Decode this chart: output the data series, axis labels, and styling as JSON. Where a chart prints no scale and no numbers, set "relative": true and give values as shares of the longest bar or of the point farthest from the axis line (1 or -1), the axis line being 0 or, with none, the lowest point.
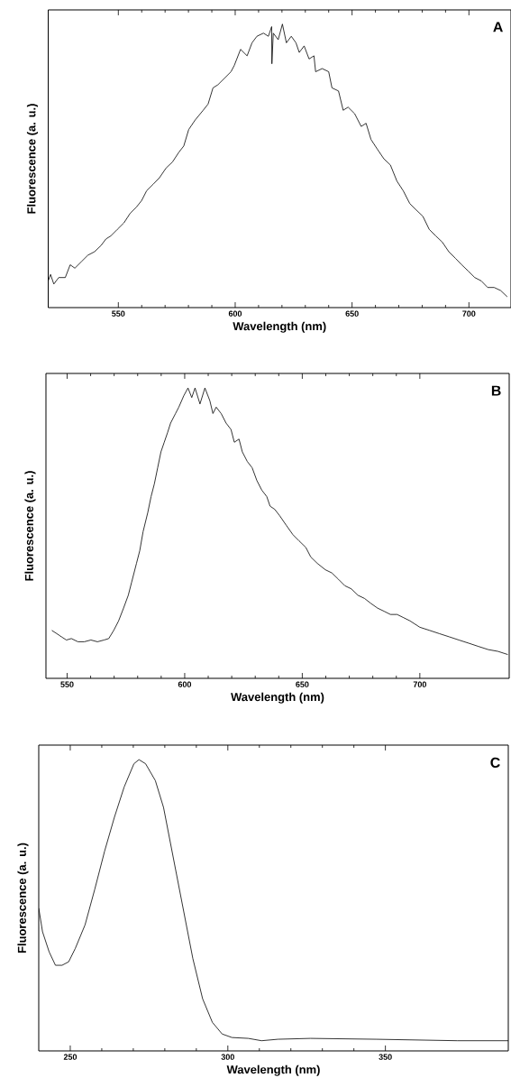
{
  "chart_data": [
    {
      "type": "line",
      "xlabel": "Wavelength (nm)",
      "ylabel": "Fluorescence (a. u.)",
      "relative": true,
      "color": "#000000",
      "xlim": [
        520,
        718
      ],
      "xticks": [
        550,
        600,
        650,
        700
      ],
      "annotations": [
        "A"
      ],
      "x": [
        520,
        521,
        522.4,
        524.5,
        527.3,
        529.4,
        531.4,
        534.2,
        537,
        539.8,
        542.6,
        544.7,
        546.8,
        549.6,
        552.4,
        555.1,
        557.9,
        560,
        562.1,
        564.9,
        567.6,
        570.4,
        573.2,
        575.9,
        578,
        580.1,
        582.9,
        586.3,
        588.4,
        590.5,
        592.6,
        595.4,
        598.2,
        599.6,
        602.3,
        605.1,
        607.2,
        609.3,
        612.1,
        614.2,
        615.6,
        615.7,
        616.3,
        618.4,
        620.2,
        621.9,
        624,
        626,
        627.4,
        629.5,
        631.6,
        633.7,
        634.4,
        637.2,
        640,
        641.4,
        644.2,
        646.2,
        648.3,
        651.1,
        653.9,
        656,
        658.1,
        660.8,
        663.6,
        666.4,
        669.2,
        671.9,
        674.7,
        677.5,
        680.3,
        683,
        685.8,
        688.6,
        691.4,
        694.2,
        696.9,
        699.7,
        702.5,
        705.3,
        708,
        710.8,
        713.6,
        716.4
      ],
      "values": [
        0.094,
        0.117,
        0.083,
        0.106,
        0.106,
        0.151,
        0.139,
        0.162,
        0.185,
        0.197,
        0.219,
        0.242,
        0.253,
        0.276,
        0.299,
        0.333,
        0.356,
        0.378,
        0.412,
        0.435,
        0.458,
        0.492,
        0.514,
        0.548,
        0.57,
        0.628,
        0.662,
        0.696,
        0.718,
        0.775,
        0.786,
        0.809,
        0.832,
        0.854,
        0.911,
        0.888,
        0.934,
        0.957,
        0.968,
        0.957,
        0.991,
        0.86,
        0.968,
        0.945,
        1.0,
        0.934,
        0.957,
        0.934,
        0.9,
        0.923,
        0.877,
        0.888,
        0.832,
        0.843,
        0.832,
        0.775,
        0.764,
        0.696,
        0.707,
        0.684,
        0.639,
        0.65,
        0.593,
        0.559,
        0.525,
        0.503,
        0.446,
        0.412,
        0.367,
        0.344,
        0.322,
        0.276,
        0.253,
        0.231,
        0.197,
        0.174,
        0.151,
        0.129,
        0.106,
        0.094,
        0.071,
        0.071,
        0.06,
        0.038
      ]
    },
    {
      "type": "line",
      "xlabel": "Wavelength (nm)",
      "ylabel": "Fluorescence (a. u.)",
      "relative": true,
      "color": "#000000",
      "xlim": [
        541,
        738
      ],
      "xticks": [
        550,
        600,
        650,
        700
      ],
      "annotations": [
        "B"
      ],
      "x": [
        543.5,
        545.6,
        547.6,
        549.7,
        551.8,
        554.6,
        557.3,
        560.1,
        562.9,
        565.7,
        567.7,
        569.8,
        571.9,
        574,
        576,
        577.4,
        579.5,
        580.9,
        582.3,
        584.3,
        585.7,
        587.1,
        588.5,
        589.9,
        591.3,
        592.7,
        594,
        596.1,
        597.5,
        599.6,
        601.4,
        603,
        604.4,
        606.5,
        608.6,
        610.7,
        612,
        613.4,
        615.5,
        617.6,
        619.7,
        621.1,
        623.1,
        624.5,
        626.6,
        628.7,
        630.7,
        632.8,
        634.9,
        636.3,
        638.3,
        640.4,
        643.2,
        646,
        648.7,
        651.5,
        653.6,
        656.4,
        659.8,
        662.6,
        665.4,
        668.1,
        670.9,
        673.7,
        676.5,
        679.2,
        682,
        684.8,
        687.5,
        690.3,
        693.1,
        695.8,
        700,
        704.2,
        708.3,
        712.5,
        716.6,
        720.8,
        724.9,
        729.1,
        733.2,
        737.4
      ],
      "values": [
        0.165,
        0.154,
        0.143,
        0.132,
        0.137,
        0.126,
        0.126,
        0.132,
        0.126,
        0.132,
        0.137,
        0.165,
        0.198,
        0.242,
        0.286,
        0.33,
        0.396,
        0.44,
        0.505,
        0.571,
        0.626,
        0.67,
        0.725,
        0.78,
        0.813,
        0.846,
        0.879,
        0.912,
        0.934,
        0.973,
        1.0,
        0.967,
        1.0,
        0.945,
        1.0,
        0.956,
        0.912,
        0.934,
        0.912,
        0.879,
        0.857,
        0.813,
        0.824,
        0.78,
        0.747,
        0.725,
        0.681,
        0.648,
        0.626,
        0.593,
        0.582,
        0.56,
        0.527,
        0.495,
        0.473,
        0.451,
        0.418,
        0.396,
        0.374,
        0.363,
        0.341,
        0.319,
        0.308,
        0.286,
        0.275,
        0.258,
        0.242,
        0.231,
        0.22,
        0.22,
        0.209,
        0.198,
        0.176,
        0.165,
        0.154,
        0.143,
        0.132,
        0.121,
        0.11,
        0.099,
        0.093,
        0.082
      ]
    },
    {
      "type": "line",
      "xlabel": "Wavelength (nm)",
      "ylabel": "Fluorescence (a. u.)",
      "relative": true,
      "color": "#000000",
      "xlim": [
        240,
        389
      ],
      "xticks": [
        250,
        300,
        350
      ],
      "annotations": [
        "C"
      ],
      "x": [
        240,
        241.2,
        243.3,
        245.3,
        247.4,
        249.5,
        251.6,
        254.7,
        257.8,
        260.9,
        264,
        267.1,
        270.2,
        271.8,
        273.9,
        277,
        279.6,
        282.7,
        285.8,
        288.9,
        292,
        295.1,
        298.2,
        301.3,
        306.5,
        310.7,
        315.9,
        326.2,
        347,
        372.9,
        389
      ],
      "values": [
        0.49,
        0.409,
        0.34,
        0.294,
        0.294,
        0.306,
        0.352,
        0.433,
        0.556,
        0.686,
        0.802,
        0.906,
        0.986,
        1.0,
        0.986,
        0.928,
        0.836,
        0.663,
        0.49,
        0.317,
        0.179,
        0.098,
        0.058,
        0.046,
        0.043,
        0.035,
        0.04,
        0.043,
        0.04,
        0.035,
        0.035
      ]
    }
  ]
}
